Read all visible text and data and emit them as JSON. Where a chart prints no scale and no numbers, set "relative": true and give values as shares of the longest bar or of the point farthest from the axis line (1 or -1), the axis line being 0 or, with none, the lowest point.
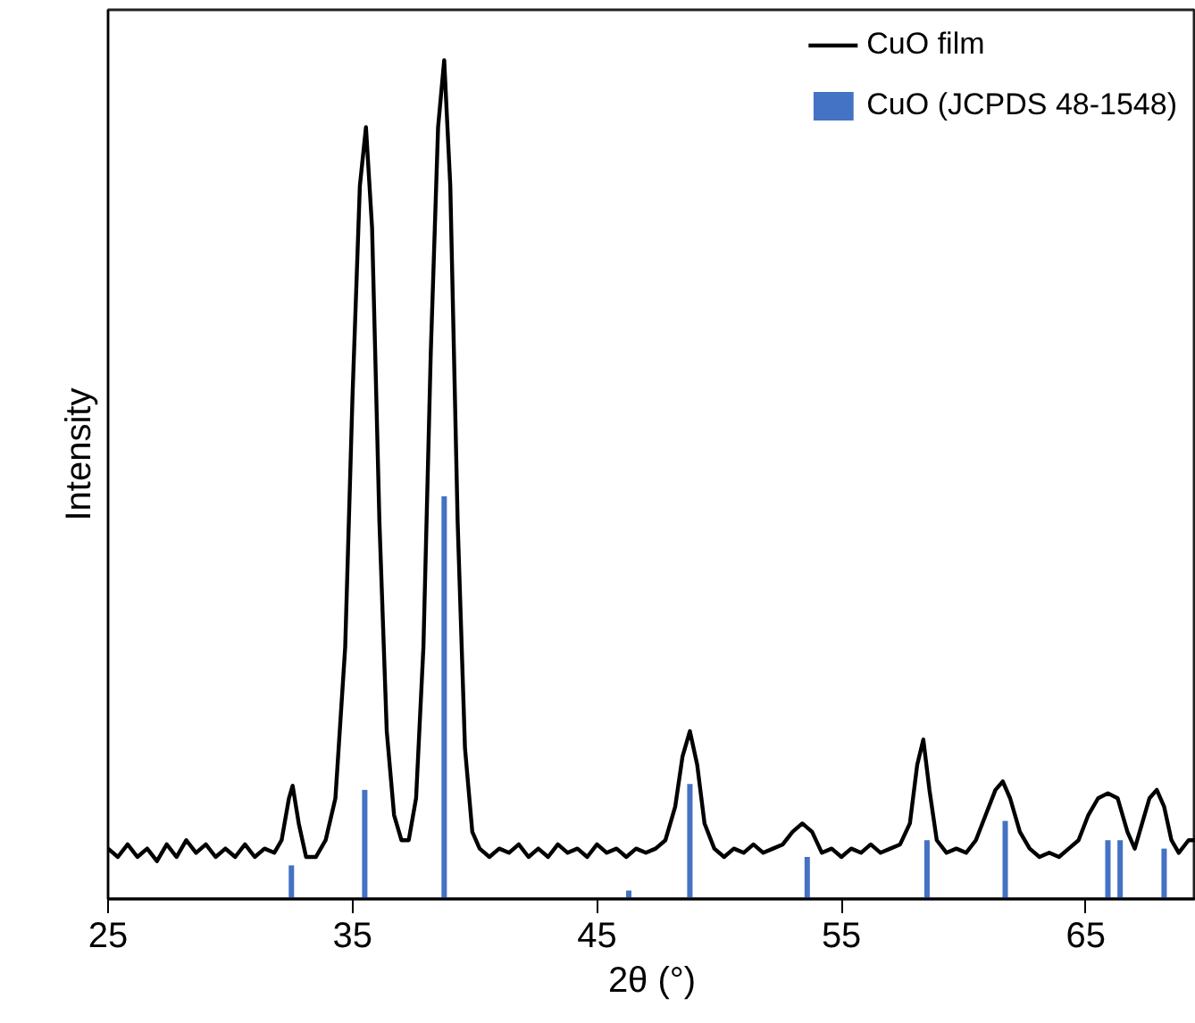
{
  "chart_data": {
    "type": "line",
    "relative": true,
    "xlabel": "2θ (°)",
    "ylabel": "Intensity",
    "xlim": [
      25,
      69.5
    ],
    "xticks": [
      25,
      35,
      45,
      55,
      65
    ],
    "grid": false,
    "legend": "top right",
    "series": [
      {
        "name": "CuO film",
        "color": "#000000",
        "x": [
          25,
          25.4,
          25.8,
          26.2,
          26.6,
          27,
          27.4,
          27.8,
          28.2,
          28.6,
          29,
          29.4,
          29.8,
          30.2,
          30.6,
          31,
          31.4,
          31.8,
          32.1,
          32.4,
          32.55,
          32.8,
          33.1,
          33.5,
          33.9,
          34.3,
          34.7,
          35.0,
          35.3,
          35.55,
          35.8,
          36.1,
          36.4,
          36.7,
          37.0,
          37.3,
          37.6,
          37.9,
          38.2,
          38.5,
          38.75,
          39.0,
          39.3,
          39.6,
          39.9,
          40.2,
          40.6,
          41,
          41.4,
          41.8,
          42.2,
          42.6,
          43,
          43.4,
          43.8,
          44.2,
          44.6,
          45,
          45.4,
          45.8,
          46.2,
          46.6,
          47,
          47.4,
          47.8,
          48.2,
          48.5,
          48.8,
          49.1,
          49.4,
          49.8,
          50.2,
          50.6,
          51,
          51.4,
          51.8,
          52.2,
          52.6,
          53,
          53.4,
          53.8,
          54.2,
          54.6,
          55,
          55.4,
          55.8,
          56.2,
          56.6,
          57,
          57.4,
          57.8,
          58.1,
          58.35,
          58.6,
          58.9,
          59.3,
          59.7,
          60.1,
          60.5,
          60.9,
          61.3,
          61.6,
          61.9,
          62.3,
          62.7,
          63.1,
          63.5,
          63.9,
          64.3,
          64.7,
          65.1,
          65.5,
          65.9,
          66.3,
          66.7,
          67.0,
          67.3,
          67.6,
          67.9,
          68.2,
          68.5,
          68.8,
          69.2,
          69.5
        ],
        "values": [
          0.06,
          0.05,
          0.065,
          0.05,
          0.06,
          0.045,
          0.065,
          0.05,
          0.07,
          0.055,
          0.065,
          0.05,
          0.06,
          0.05,
          0.065,
          0.05,
          0.06,
          0.055,
          0.07,
          0.12,
          0.135,
          0.09,
          0.05,
          0.05,
          0.07,
          0.12,
          0.3,
          0.6,
          0.85,
          0.92,
          0.8,
          0.45,
          0.2,
          0.1,
          0.07,
          0.07,
          0.12,
          0.3,
          0.65,
          0.92,
          1.0,
          0.85,
          0.45,
          0.18,
          0.08,
          0.06,
          0.05,
          0.06,
          0.055,
          0.065,
          0.05,
          0.06,
          0.05,
          0.065,
          0.055,
          0.06,
          0.05,
          0.065,
          0.055,
          0.06,
          0.05,
          0.06,
          0.055,
          0.06,
          0.07,
          0.11,
          0.17,
          0.2,
          0.16,
          0.09,
          0.06,
          0.05,
          0.06,
          0.055,
          0.065,
          0.055,
          0.06,
          0.065,
          0.08,
          0.09,
          0.08,
          0.055,
          0.06,
          0.05,
          0.06,
          0.055,
          0.065,
          0.055,
          0.06,
          0.065,
          0.09,
          0.16,
          0.19,
          0.13,
          0.07,
          0.055,
          0.06,
          0.055,
          0.07,
          0.1,
          0.13,
          0.14,
          0.12,
          0.08,
          0.06,
          0.05,
          0.055,
          0.05,
          0.06,
          0.07,
          0.1,
          0.12,
          0.126,
          0.12,
          0.08,
          0.06,
          0.09,
          0.12,
          0.13,
          0.11,
          0.07,
          0.055,
          0.07,
          0.07
        ]
      },
      {
        "name": "CuO (JCPDS 48-1548)",
        "type": "bar",
        "color": "#4472c4",
        "x": [
          32.5,
          35.5,
          38.75,
          46.3,
          48.8,
          53.6,
          58.5,
          61.7,
          65.9,
          66.4,
          68.2
        ],
        "values": [
          0.04,
          0.13,
          0.48,
          0.01,
          0.137,
          0.05,
          0.07,
          0.093,
          0.07,
          0.07,
          0.06
        ]
      }
    ]
  }
}
